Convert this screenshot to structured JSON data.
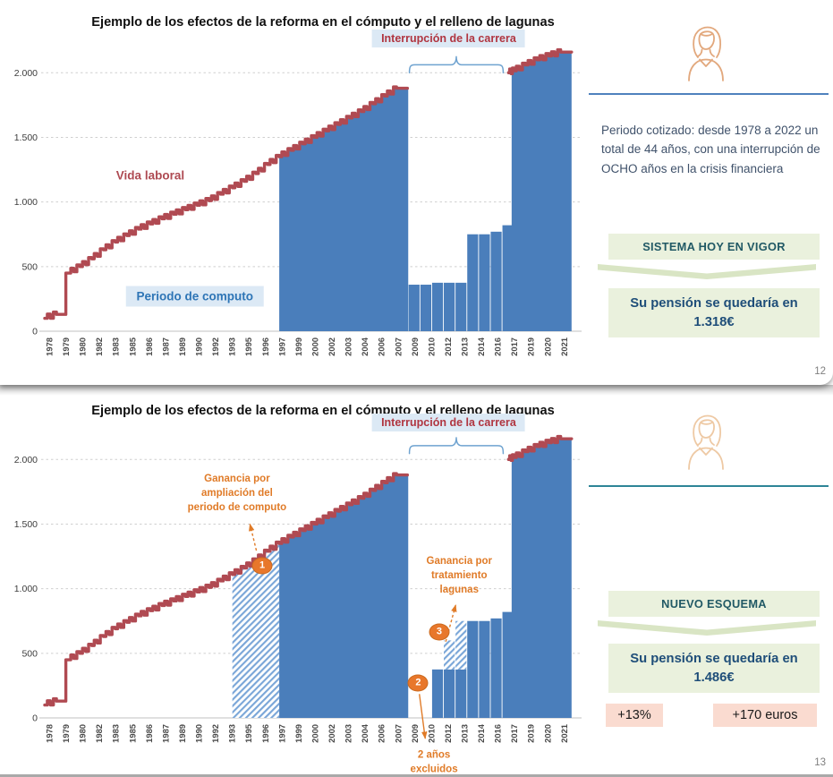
{
  "colors": {
    "line_red": "#b04a52",
    "bar_blue": "#4a7ebb",
    "hatch_stripe": "#7aa6d8",
    "annotation_bg_blue": "#dce9f5",
    "annotation_red": "#b03540",
    "annotation_blue": "#2e75b6",
    "orange": "#e07b28",
    "green_box_bg": "#eaf1dd",
    "scheme_text": "#215965",
    "result_text": "#1f4e79",
    "pink_badge_bg": "#fadbd0",
    "sep_slide1": "#4f81bd",
    "sep_slide2": "#2e8597"
  },
  "slides": [
    {
      "title": "Ejemplo de los efectos de la reforma en el cómputo y el relleno de lagunas",
      "page_number": "12",
      "sidebar": {
        "icon": "woman-profile-icon",
        "text": "Periodo cotizado: desde 1978 a 2022 un total de 44 años, con una interrupción de OCHO años en la crisis financiera",
        "scheme_label": "SISTEMA HOY EN VIGOR",
        "result_line1": "Su pensión se quedaría en",
        "result_value": "1.318€"
      }
    },
    {
      "title": "Ejemplo de los efectos de la reforma en el cómputo y el relleno de lagunas",
      "page_number": "13",
      "sidebar": {
        "icon": "woman-profile-icon",
        "scheme_label": "NUEVO ESQUEMA",
        "result_line1": "Su pensión se quedaría en",
        "result_value": "1.486€",
        "badges": [
          "+13%",
          "+170 euros"
        ]
      }
    }
  ],
  "chart_data": [
    {
      "type": "area",
      "title": "Ejemplo de los efectos de la reforma en el cómputo y el relleno de lagunas",
      "xlabel": "",
      "ylabel": "",
      "ylim": [
        0,
        2200
      ],
      "grid": true,
      "yticks": [
        {
          "value": 0,
          "label": "0"
        },
        {
          "value": 500,
          "label": "500"
        },
        {
          "value": 1000,
          "label": "1.000"
        },
        {
          "value": 1500,
          "label": "1.500"
        },
        {
          "value": 2000,
          "label": "2.000"
        }
      ],
      "x_tick_labels": [
        "1978",
        "1979",
        "1980",
        "1982",
        "1983",
        "1985",
        "1986",
        "1987",
        "1989",
        "1990",
        "1992",
        "1993",
        "1995",
        "1996",
        "1997",
        "1999",
        "2000",
        "2002",
        "2003",
        "2004",
        "2006",
        "2007",
        "2009",
        "2010",
        "2012",
        "2013",
        "2014",
        "2016",
        "2017",
        "2019",
        "2020",
        "2021"
      ],
      "line": {
        "name": "Vida laboral",
        "segments": [
          {
            "start_year": 1978,
            "values": [
              100,
              130,
              450,
              500,
              560,
              630,
              690,
              740,
              790,
              830,
              870,
              905,
              940,
              975,
              1010,
              1060,
              1110,
              1160,
              1220,
              1290,
              1350,
              1400,
              1450,
              1500,
              1550,
              1600,
              1650,
              1700,
              1760,
              1820,
              1880
            ]
          },
          {
            "years": [
              2017.55,
              2018,
              2019,
              2020,
              2021,
              2022
            ],
            "values": [
              2000,
              2015,
              2060,
              2100,
              2130,
              2160
            ]
          }
        ]
      },
      "area_name": "Periodo de computo",
      "fill_regions": [
        {
          "from": 1998,
          "to": 2009,
          "style": "solid"
        },
        {
          "from": 2017.82,
          "to": 2022.93,
          "style": "solid"
        }
      ],
      "bars": [
        {
          "year": 2009,
          "value": 360
        },
        {
          "year": 2010,
          "value": 360
        },
        {
          "year": 2011,
          "value": 375
        },
        {
          "year": 2012,
          "value": 375
        },
        {
          "year": 2013,
          "value": 375
        },
        {
          "year": 2014,
          "value": 750
        },
        {
          "year": 2015,
          "value": 750
        },
        {
          "year": 2016,
          "value": 770
        },
        {
          "year": 2017,
          "value": 820
        }
      ],
      "annotations": [
        {
          "kind": "label",
          "style": "interruption",
          "name": "interruption-label",
          "text": "Interrupción de la carrera",
          "year": 2012.45,
          "value": 2265
        },
        {
          "kind": "brace",
          "name": "interruption-brace",
          "from_year": 2009.1,
          "to_year": 2017.1,
          "value_top": 2128,
          "value_base": 2000
        },
        {
          "kind": "label",
          "style": "line",
          "name": "vida-laboral-label",
          "text": "Vida laboral",
          "year": 1987.0,
          "value": 1205
        },
        {
          "kind": "label",
          "style": "area",
          "name": "periodo-computo-label",
          "text": "Periodo de computo",
          "year": 1990.8,
          "value": 270
        }
      ]
    },
    {
      "type": "area",
      "title": "Ejemplo de los efectos de la reforma en el cómputo y el relleno de lagunas",
      "xlabel": "",
      "ylabel": "",
      "ylim": [
        0,
        2200
      ],
      "grid": true,
      "yticks": [
        {
          "value": 0,
          "label": "0"
        },
        {
          "value": 500,
          "label": "500"
        },
        {
          "value": 1000,
          "label": "1.000"
        },
        {
          "value": 1500,
          "label": "1.500"
        },
        {
          "value": 2000,
          "label": "2.000"
        }
      ],
      "x_tick_labels": [
        "1978",
        "1979",
        "1980",
        "1982",
        "1983",
        "1985",
        "1986",
        "1987",
        "1989",
        "1990",
        "1992",
        "1993",
        "1995",
        "1996",
        "1997",
        "1999",
        "2000",
        "2002",
        "2003",
        "2004",
        "2006",
        "2007",
        "2009",
        "2010",
        "2012",
        "2013",
        "2014",
        "2016",
        "2017",
        "2019",
        "2020",
        "2021"
      ],
      "line": {
        "name": "Vida laboral",
        "segments": [
          {
            "start_year": 1978,
            "values": [
              100,
              130,
              450,
              500,
              560,
              630,
              690,
              740,
              790,
              830,
              870,
              905,
              940,
              975,
              1010,
              1060,
              1110,
              1160,
              1220,
              1290,
              1350,
              1400,
              1450,
              1500,
              1550,
              1600,
              1650,
              1700,
              1760,
              1820,
              1880
            ]
          },
          {
            "years": [
              2017.55,
              2018,
              2019,
              2020,
              2021,
              2022
            ],
            "values": [
              2000,
              2015,
              2060,
              2100,
              2130,
              2160
            ]
          }
        ]
      },
      "area_name": "Periodo de computo",
      "fill_regions": [
        {
          "from": 1994,
          "to": 1998,
          "style": "hatched"
        },
        {
          "from": 1998,
          "to": 2009,
          "style": "solid"
        },
        {
          "from": 2017.82,
          "to": 2022.93,
          "style": "solid"
        }
      ],
      "bars": [
        {
          "year": 2011,
          "value": 375
        },
        {
          "year": 2012,
          "value": 375
        },
        {
          "year": 2013,
          "value": 375
        },
        {
          "year": 2014,
          "value": 750
        },
        {
          "year": 2015,
          "value": 750
        },
        {
          "year": 2016,
          "value": 770
        },
        {
          "year": 2017,
          "value": 820
        },
        {
          "year": 2012,
          "base": 375,
          "value": 600,
          "style": "hatched"
        },
        {
          "year": 2013,
          "base": 375,
          "value": 750,
          "style": "hatched"
        }
      ],
      "annotations": [
        {
          "kind": "label",
          "style": "interruption",
          "name": "interruption-label",
          "text": "Interrupción de la carrera",
          "year": 2012.45,
          "value": 2285
        },
        {
          "kind": "brace",
          "name": "interruption-brace",
          "from_year": 2009.1,
          "to_year": 2017.1,
          "value_top": 2172,
          "value_base": 2046
        },
        {
          "kind": "label",
          "style": "gain",
          "name": "gain-period-extension-label",
          "text": "Ganancia por\nampliación del\nperiodo de computo",
          "year": 1994.4,
          "value": 1742
        },
        {
          "kind": "arrow",
          "name": "gain-period-arrow",
          "dashed": true,
          "from": [
            1996.05,
            1295
          ],
          "to": [
            1995.5,
            1500
          ]
        },
        {
          "kind": "circle",
          "name": "step-marker-1",
          "text": "1",
          "year": 1996.55,
          "value": 1175
        },
        {
          "kind": "label",
          "style": "gain",
          "name": "gain-lagunas-label",
          "text": "Ganancia por\ntratamiento\nlagunas",
          "year": 2013.35,
          "value": 1100
        },
        {
          "kind": "arrow",
          "name": "gain-lagunas-arrow",
          "dashed": true,
          "from": [
            2012.2,
            590
          ],
          "to": [
            2013.05,
            875
          ]
        },
        {
          "kind": "circle",
          "name": "step-marker-3",
          "text": "3",
          "year": 2011.65,
          "value": 665
        },
        {
          "kind": "circle",
          "name": "step-marker-2",
          "text": "2",
          "year": 2009.85,
          "value": 268
        },
        {
          "kind": "arrow",
          "name": "excluded-pointer",
          "dashed": false,
          "from": [
            2009.95,
            185
          ],
          "to": [
            2010.45,
            -160
          ]
        },
        {
          "kind": "label",
          "style": "excluded",
          "name": "excluded-years-label",
          "text": "2 años\nexcluidos",
          "year": 2011.2,
          "value": -348
        }
      ]
    }
  ]
}
